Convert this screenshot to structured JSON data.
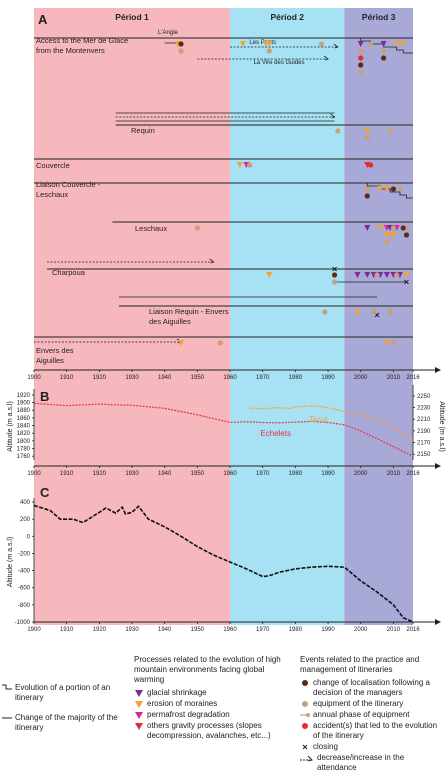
{
  "chart_data": [
    {
      "type": "timeline",
      "panel": "A",
      "x_ticks": [
        1900,
        1910,
        1920,
        1930,
        1940,
        1950,
        1960,
        1970,
        1980,
        1990,
        2000,
        2010,
        2016
      ],
      "periods": [
        {
          "label": "Périod 1",
          "start": 1900,
          "end": 1960,
          "color": "#f6b7bd"
        },
        {
          "label": "Périod 2",
          "start": 1960,
          "end": 1995,
          "color": "#a6e1f4"
        },
        {
          "label": "Périod 3",
          "start": 1995,
          "end": 2016,
          "color": "#a9a9d8"
        }
      ],
      "itineraries": [
        {
          "name": "Access to the Mer de Glace from the Montenvers",
          "label_lines": [
            "Access to the Mer de Glace",
            "from the Montenvers"
          ]
        },
        {
          "name": "Requin"
        },
        {
          "name": "Couvercle"
        },
        {
          "name": "Liaison Couvercle - Leschaux",
          "label_lines": [
            "Liaison Couvercle -",
            "Leschaux"
          ]
        },
        {
          "name": "Leschaux"
        },
        {
          "name": "Charpoua"
        },
        {
          "name": "Liaison Requin - Envers des Aiguilles",
          "label_lines": [
            "Liaison Requin - Envers",
            "des Aiguilles"
          ]
        },
        {
          "name": "Envers des Aiguilles",
          "label_lines": [
            "Envers des",
            "Aiguilles"
          ]
        }
      ],
      "sub_labels": [
        "L'Angle",
        "Les Ponts",
        "La Vire des Guides"
      ],
      "events": [
        {
          "row": 0,
          "year": 1944,
          "kind": "moraine"
        },
        {
          "row": 0,
          "year": 1945,
          "kind": "relocation"
        },
        {
          "row": 0,
          "year": 1945,
          "kind": "equipment"
        },
        {
          "row": 0,
          "year": 1964,
          "kind": "moraine"
        },
        {
          "row": 0,
          "year": 1971,
          "kind": "moraine"
        },
        {
          "row": 0,
          "year": 1972,
          "kind": "moraine"
        },
        {
          "row": 0,
          "year": 1972,
          "kind": "equipment"
        },
        {
          "row": 0,
          "year": 1988,
          "kind": "equipment"
        },
        {
          "row": 0,
          "year": 2000,
          "kind": "glacial"
        },
        {
          "row": 0,
          "year": 2000,
          "kind": "equipment"
        },
        {
          "row": 0,
          "year": 2000,
          "kind": "accident"
        },
        {
          "row": 0,
          "year": 2000,
          "kind": "relocation"
        },
        {
          "row": 0,
          "year": 2000,
          "kind": "equipment"
        },
        {
          "row": 0,
          "year": 2003,
          "kind": "equipment"
        },
        {
          "row": 0,
          "year": 2007,
          "kind": "glacial"
        },
        {
          "row": 0,
          "year": 2007,
          "kind": "equipment"
        },
        {
          "row": 0,
          "year": 2007,
          "kind": "relocation"
        },
        {
          "row": 0,
          "year": 2011,
          "kind": "moraine"
        },
        {
          "row": 0,
          "year": 2013,
          "kind": "moraine"
        },
        {
          "row": 1,
          "year": 1993,
          "kind": "equipment"
        },
        {
          "row": 1,
          "year": 2002,
          "kind": "moraine"
        },
        {
          "row": 1,
          "year": 2002,
          "kind": "equipment"
        },
        {
          "row": 1,
          "year": 2009,
          "kind": "equipment"
        },
        {
          "row": 2,
          "year": 1963,
          "kind": "moraine"
        },
        {
          "row": 2,
          "year": 1965,
          "kind": "permafrost"
        },
        {
          "row": 2,
          "year": 1966,
          "kind": "equipment"
        },
        {
          "row": 2,
          "year": 2002,
          "kind": "gravity"
        },
        {
          "row": 2,
          "year": 2003,
          "kind": "accident"
        },
        {
          "row": 3,
          "year": 2002,
          "kind": "equipment"
        },
        {
          "row": 3,
          "year": 2002,
          "kind": "relocation"
        },
        {
          "row": 3,
          "year": 2006,
          "kind": "moraine"
        },
        {
          "row": 3,
          "year": 2008,
          "kind": "moraine"
        },
        {
          "row": 3,
          "year": 2010,
          "kind": "relocation"
        },
        {
          "row": 3,
          "year": 2012,
          "kind": "equipment"
        },
        {
          "row": 4,
          "year": 1950,
          "kind": "equipment"
        },
        {
          "row": 4,
          "year": 2002,
          "kind": "glacial"
        },
        {
          "row": 4,
          "year": 2006,
          "kind": "moraine"
        },
        {
          "row": 4,
          "year": 2008,
          "kind": "permafrost"
        },
        {
          "row": 4,
          "year": 2009,
          "kind": "glacial"
        },
        {
          "row": 4,
          "year": 2011,
          "kind": "permafrost"
        },
        {
          "row": 4,
          "year": 2014,
          "kind": "equipment"
        },
        {
          "row": 4,
          "year": 2008,
          "kind": "moraine"
        },
        {
          "row": 4,
          "year": 2009,
          "kind": "equipment"
        },
        {
          "row": 4,
          "year": 2010,
          "kind": "equipment"
        },
        {
          "row": 4,
          "year": 2014,
          "kind": "relocation"
        },
        {
          "row": 4,
          "year": 2008,
          "kind": "equipment"
        },
        {
          "row": 4,
          "year": 2010,
          "kind": "moraine"
        },
        {
          "row": 4,
          "year": 2013,
          "kind": "relocation"
        },
        {
          "row": 5,
          "year": 1972,
          "kind": "moraine"
        },
        {
          "row": 5,
          "year": 1992,
          "kind": "relocation"
        },
        {
          "row": 5,
          "year": 1992,
          "kind": "equipment"
        },
        {
          "row": 5,
          "year": 1999,
          "kind": "glacial"
        },
        {
          "row": 5,
          "year": 2002,
          "kind": "glacial"
        },
        {
          "row": 5,
          "year": 2004,
          "kind": "glacial"
        },
        {
          "row": 5,
          "year": 2006,
          "kind": "glacial"
        },
        {
          "row": 5,
          "year": 2008,
          "kind": "glacial"
        },
        {
          "row": 5,
          "year": 2010,
          "kind": "glacial"
        },
        {
          "row": 5,
          "year": 2012,
          "kind": "glacial"
        },
        {
          "row": 5,
          "year": 2014,
          "kind": "moraine"
        },
        {
          "row": 5,
          "year": 2005,
          "kind": "equipment"
        },
        {
          "row": 5,
          "year": 2011,
          "kind": "equipment"
        },
        {
          "row": 6,
          "year": 1989,
          "kind": "equipment"
        },
        {
          "row": 6,
          "year": 1999,
          "kind": "moraine"
        },
        {
          "row": 6,
          "year": 2004,
          "kind": "equipment"
        },
        {
          "row": 6,
          "year": 2009,
          "kind": "equipment"
        },
        {
          "row": 7,
          "year": 1945,
          "kind": "moraine"
        },
        {
          "row": 7,
          "year": 1957,
          "kind": "equipment"
        },
        {
          "row": 7,
          "year": 2008,
          "kind": "moraine"
        },
        {
          "row": 7,
          "year": 2010,
          "kind": "equipment"
        }
      ]
    },
    {
      "type": "line",
      "panel": "B",
      "ylabel_left": "Altitude (m a.s.l)",
      "ylabel_right": "Altitude (m a.s.l)",
      "y_left_ticks": [
        1920,
        1900,
        1880,
        1860,
        1840,
        1820,
        1800,
        1780,
        1760
      ],
      "y_right_ticks": [
        2250,
        2230,
        2210,
        2190,
        2170,
        2150
      ],
      "series": [
        {
          "name": "Echelets",
          "axis": "left",
          "color": "#e2383d",
          "x": [
            1900,
            1910,
            1920,
            1925,
            1930,
            1940,
            1950,
            1960,
            1965,
            1970,
            1975,
            1980,
            1985,
            1990,
            1995,
            2000,
            2005,
            2010,
            2016
          ],
          "y": [
            1898,
            1892,
            1896,
            1894,
            1893,
            1885,
            1868,
            1848,
            1850,
            1848,
            1847,
            1849,
            1851,
            1848,
            1842,
            1826,
            1806,
            1785,
            1760
          ]
        },
        {
          "name": "Tacul",
          "axis": "right",
          "color": "#f4a236",
          "x": [
            1966,
            1970,
            1975,
            1978,
            1980,
            1985,
            1990,
            1995,
            2000,
            2005,
            2010,
            2016
          ],
          "y": [
            2229,
            2228,
            2230,
            2228,
            2231,
            2233,
            2230,
            2223,
            2218,
            2210,
            2195,
            2174
          ]
        }
      ]
    },
    {
      "type": "line",
      "panel": "C",
      "ylabel": "Altitude (m a.s.l)",
      "y_ticks": [
        400,
        200,
        0,
        -200,
        -400,
        -600,
        -800,
        -1000
      ],
      "x_ticks": [
        1900,
        1910,
        1920,
        1930,
        1940,
        1950,
        1960,
        1970,
        1980,
        1990,
        2000,
        2010,
        2016
      ],
      "series": [
        {
          "color": "#111",
          "x": [
            1900,
            1905,
            1908,
            1912,
            1915,
            1920,
            1922,
            1925,
            1927,
            1928,
            1930,
            1932,
            1935,
            1940,
            1945,
            1950,
            1955,
            1960,
            1965,
            1970,
            1972,
            1975,
            1980,
            1985,
            1990,
            1995,
            2000,
            2005,
            2010,
            2013,
            2016
          ],
          "y": [
            360,
            300,
            200,
            200,
            160,
            280,
            330,
            270,
            340,
            260,
            280,
            350,
            200,
            110,
            0,
            -120,
            -220,
            -300,
            -380,
            -470,
            -460,
            -420,
            -380,
            -360,
            -350,
            -360,
            -520,
            -650,
            -800,
            -950,
            -1000
          ]
        }
      ]
    }
  ],
  "panel_labels": [
    "A",
    "B",
    "C"
  ],
  "legend": {
    "itinerary": [
      {
        "text": "Evolution of a portion of an itinerary"
      },
      {
        "text": "Change of the majority of the itinerary"
      }
    ],
    "processes_title": "Processes related to the evolution of high mountain environments facing global warming",
    "processes": [
      {
        "text": "glacial shrinkage",
        "color": "#7a2a9a"
      },
      {
        "text": "erosion of moraines",
        "color": "#f4a236"
      },
      {
        "text": "permafrost degradation",
        "color": "#e4209a"
      },
      {
        "text": "others gravity processes (slopes decompression, avalanches, etc...)",
        "color": "#e12d2d"
      }
    ],
    "events_title": "Events related to the practice and management of itineraries",
    "events": [
      {
        "text": "change of localisation following a decision of the managers",
        "color": "#5a2d12"
      },
      {
        "text": "equipment of the itinerary",
        "color": "#c8a07a"
      },
      {
        "text": "annual phase of equipment",
        "color": "#d0a080"
      },
      {
        "text": "accident(s) that led to the evolution of the itinerary",
        "color": "#e12d2d"
      },
      {
        "text": "closing"
      },
      {
        "text": "decrease/increase in the attendance"
      }
    ]
  },
  "colors": {
    "p1": "#f6b7bd",
    "p2": "#a6e1f4",
    "p3": "#a9a9d8",
    "glacial": "#7a2a9a",
    "moraine": "#f4a236",
    "permafrost": "#e4209a",
    "gravity": "#e12d2d",
    "relocation": "#5a2d12",
    "equipment": "#c8a07a",
    "accident": "#e12d2d"
  }
}
